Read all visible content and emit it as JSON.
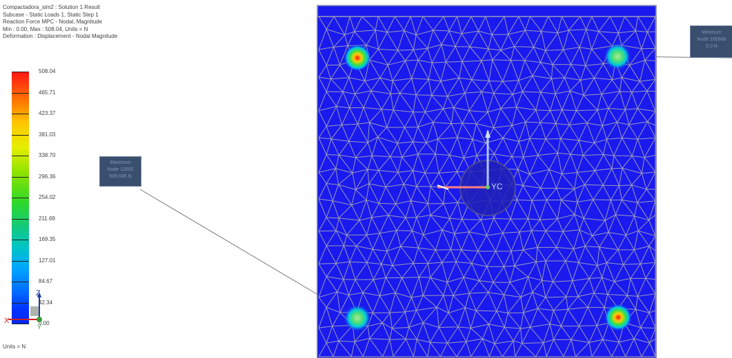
{
  "result_header": {
    "line1": "Compactadora_sim2 : Solution 1 Result",
    "line2": "Subcase - Static Loads 1, Static Step 1",
    "line3": "Reaction Force MPC - Nodal, Magnitude",
    "line4": "Min : 0.00, Max : 508.04, Units = N",
    "line5": "Deformation : Displacement - Nodal Magnitude"
  },
  "legend": {
    "ticks": [
      "508.04",
      "465.71",
      "423.37",
      "381.03",
      "338.70",
      "296.36",
      "254.02",
      "211.69",
      "169.35",
      "127.01",
      "84.67",
      "42.34",
      "0.00"
    ],
    "units": "Units = N"
  },
  "annotations": {
    "maximum": {
      "line1": "Maximum",
      "line2": "Node 12600",
      "line3": "508.045 N"
    },
    "minimum": {
      "line1": "Minimum",
      "line2": "Node 165688",
      "line3": "0.0 N"
    }
  },
  "triad_labels": {
    "z": "Z",
    "x": "X",
    "y": "Y"
  },
  "wcs_label": "YC",
  "colors": {
    "mesh_fill": "#1a1aee",
    "mesh_edges": "#9a9ab8",
    "callout_bg": "#3a4e6e"
  }
}
